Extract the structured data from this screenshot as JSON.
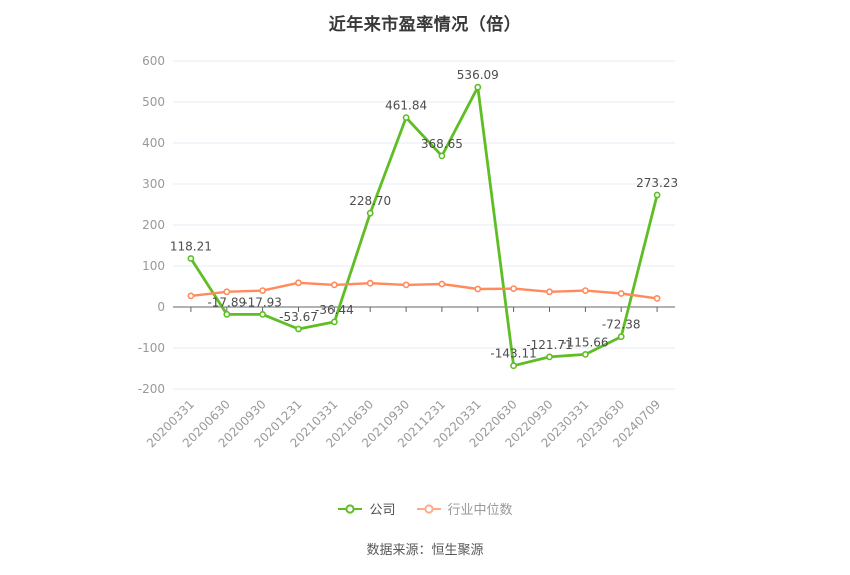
{
  "chart_data": {
    "type": "line",
    "title": "近年来市盈率情况（倍）",
    "categories": [
      "20200331",
      "20200630",
      "20200930",
      "20201231",
      "20210331",
      "20210630",
      "20210930",
      "20211231",
      "20220331",
      "20220630",
      "20220930",
      "20230331",
      "20230630",
      "20240709"
    ],
    "ylim": [
      -200,
      600
    ],
    "y_tick_interval": 100,
    "grid": "on",
    "legend_position": "bottom",
    "series": [
      {
        "name": "公司",
        "color": "#5EBE23",
        "values": [
          118.21,
          -17.89,
          -17.93,
          -53.67,
          -36.44,
          228.7,
          461.84,
          368.65,
          536.09,
          -143.11,
          -121.71,
          -115.66,
          -72.38,
          273.23
        ],
        "point_labels": [
          "118.21",
          "-17.89",
          "-17.93",
          "-53.67",
          "-36.44",
          "228.70",
          "461.84",
          "368.65",
          "536.09",
          "-143.11",
          "-121.71",
          "-115.66",
          "-72.38",
          "273.23"
        ]
      },
      {
        "name": "行业中位数",
        "color": "#FF8A5C",
        "values": [
          27,
          37,
          40,
          59,
          54,
          58,
          54,
          56,
          44,
          45,
          37,
          40,
          33,
          21
        ]
      }
    ]
  },
  "footer": {
    "source_label": "数据来源：恒生聚源"
  }
}
